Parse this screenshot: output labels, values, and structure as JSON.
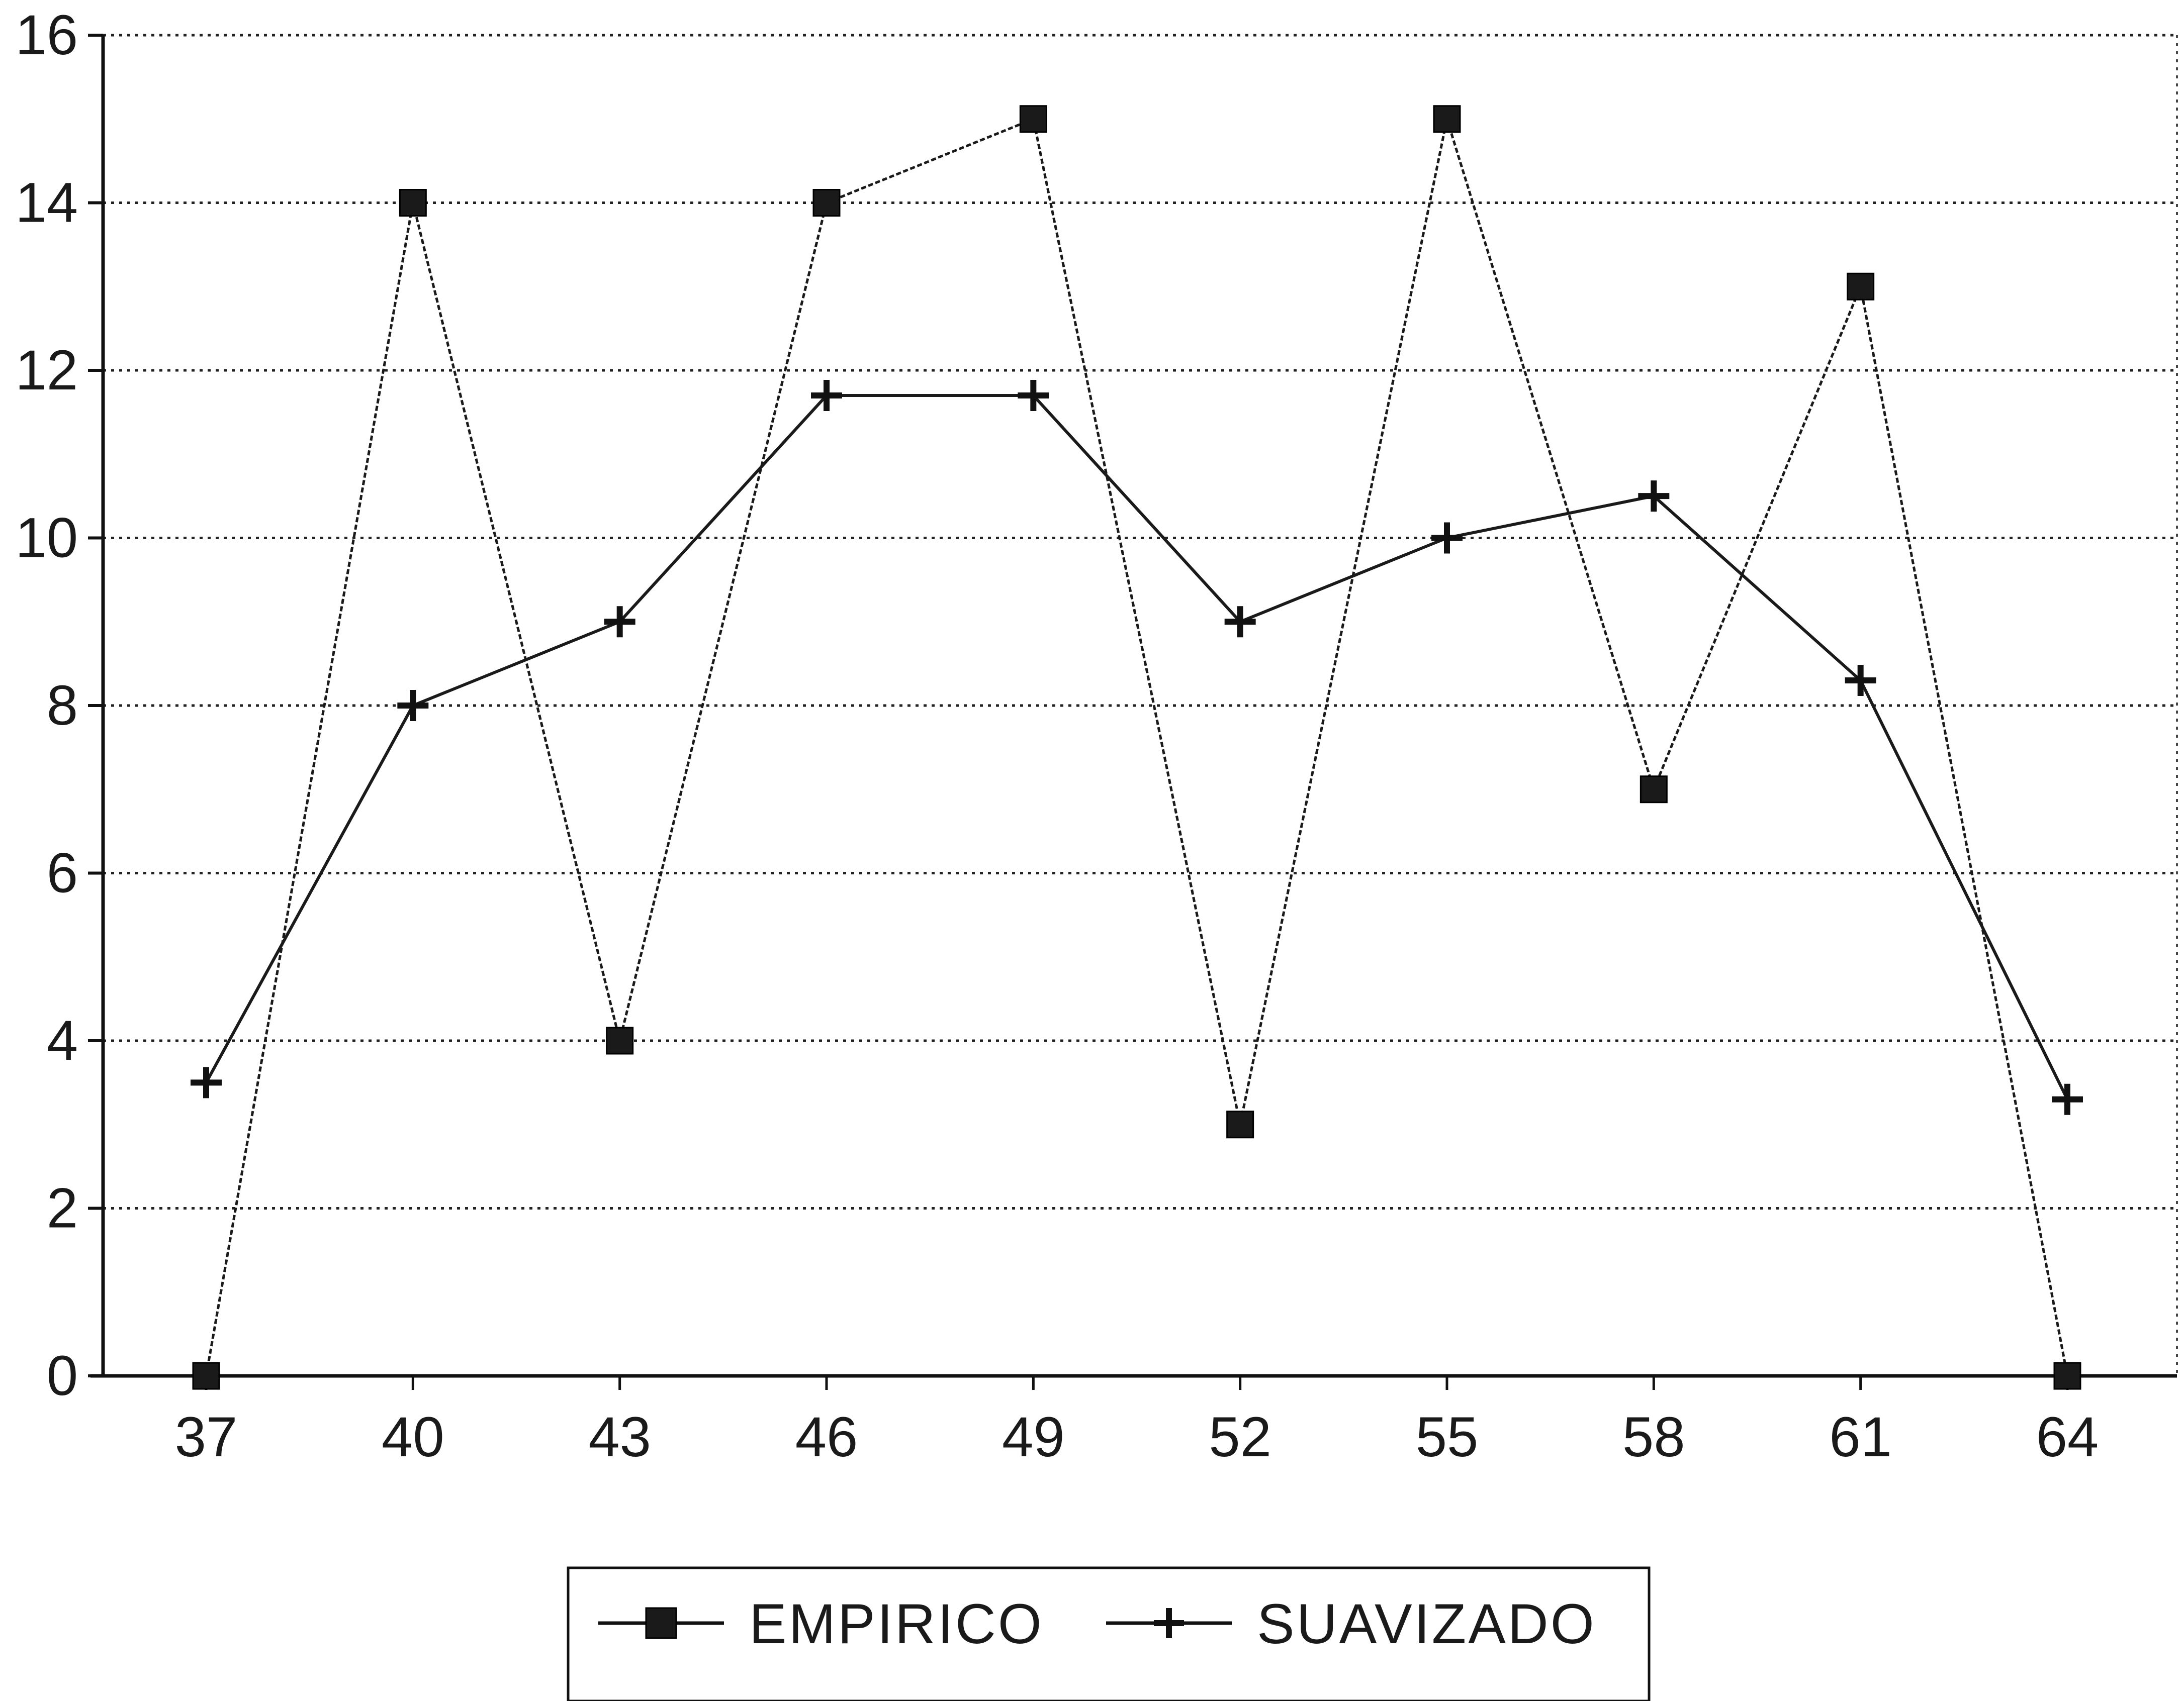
{
  "chart_data": {
    "type": "line",
    "title": "",
    "xlabel": "",
    "ylabel": "",
    "x": [
      37,
      40,
      43,
      46,
      49,
      52,
      55,
      58,
      61,
      64
    ],
    "x_tick_labels": [
      "37",
      "40",
      "43",
      "46",
      "49",
      "52",
      "55",
      "58",
      "61",
      "64"
    ],
    "ylim": [
      0,
      16
    ],
    "y_ticks": [
      0,
      2,
      4,
      6,
      8,
      10,
      12,
      14,
      16
    ],
    "y_tick_labels": [
      "0",
      "2",
      "4",
      "6",
      "8",
      "10",
      "12",
      "14",
      "16"
    ],
    "grid": "horizontal dotted",
    "legend_position": "bottom-center",
    "series": [
      {
        "name": "EMPIRICO",
        "marker": "square",
        "color": "#1a1a1a",
        "values": [
          0,
          14,
          4,
          14,
          15,
          3,
          15,
          7,
          13,
          0
        ]
      },
      {
        "name": "SUAVIZADO",
        "marker": "plus",
        "color": "#1a1a1a",
        "values": [
          3.5,
          8,
          9,
          11.7,
          11.7,
          9,
          10,
          10.5,
          8.3,
          3.3
        ]
      }
    ]
  }
}
